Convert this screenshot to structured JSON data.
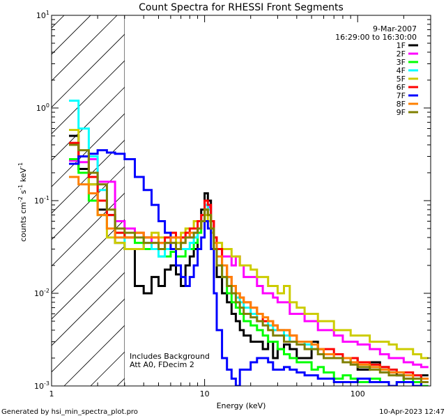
{
  "chart_data": {
    "type": "line",
    "title": "Count Spectra for RHESSI Front Segments",
    "xlabel": "Energy (keV)",
    "ylabel_main": "counts cm",
    "ylabel_exp1": "-2",
    "ylabel_mid": " s",
    "ylabel_exp2": "-1",
    "ylabel_end": " keV",
    "ylabel_exp3": "-1",
    "xscale": "log",
    "yscale": "log",
    "xlim": [
      1,
      300
    ],
    "ylim": [
      0.001,
      10
    ],
    "x_ticks": [
      {
        "value": 1,
        "label": "1"
      },
      {
        "value": 10,
        "label": "10"
      },
      {
        "value": 100,
        "label": "100"
      }
    ],
    "y_ticks": [
      {
        "value": 0.001,
        "base": "10",
        "exp": "-3"
      },
      {
        "value": 0.01,
        "base": "10",
        "exp": "-2"
      },
      {
        "value": 0.1,
        "base": "10",
        "exp": "-1"
      },
      {
        "value": 1,
        "base": "10",
        "exp": "0"
      },
      {
        "value": 10,
        "base": "10",
        "exp": "1"
      }
    ],
    "hatched_region": [
      1,
      3
    ],
    "date": "9-Mar-2007",
    "time_range": "16:29:00 to 16:30:00",
    "annotations": [
      "Includes Background",
      "Att A0, FDecim 2"
    ],
    "footer_left": "Generated by hsi_min_spectra_plot.pro",
    "footer_right": "10-Apr-2023 12:47",
    "energy_bins": [
      1.3,
      1.5,
      1.75,
      2.0,
      2.3,
      2.6,
      3.0,
      3.5,
      4.0,
      4.5,
      5.0,
      5.5,
      6.0,
      6.5,
      7.0,
      7.5,
      8.0,
      8.5,
      9.0,
      9.5,
      10.0,
      10.5,
      11.0,
      11.5,
      12.0,
      13.0,
      14.0,
      15.0,
      16.0,
      17.0,
      18.0,
      20.0,
      22.0,
      24.0,
      26.0,
      28.0,
      30.0,
      33.0,
      36.0,
      40.0,
      45.0,
      50.0,
      55.0,
      60.0,
      70.0,
      80.0,
      90.0,
      100.0,
      120.0,
      140.0,
      160.0,
      180.0,
      200.0,
      230.0,
      260.0,
      290.0
    ],
    "series": [
      {
        "name": "1F",
        "color": "#000000",
        "values": [
          0.5,
          0.22,
          0.15,
          0.08,
          0.07,
          0.035,
          0.03,
          0.012,
          0.01,
          0.015,
          0.012,
          0.018,
          0.02,
          0.016,
          0.012,
          0.02,
          0.025,
          0.03,
          0.05,
          0.08,
          0.12,
          0.1,
          0.05,
          0.03,
          0.015,
          0.01,
          0.008,
          0.006,
          0.005,
          0.004,
          0.0035,
          0.003,
          0.003,
          0.0025,
          0.003,
          0.002,
          0.0025,
          0.0028,
          0.0025,
          0.002,
          0.002,
          0.003,
          0.0025,
          0.002,
          0.002,
          0.0018,
          0.002,
          0.0015,
          0.0018,
          0.0016,
          0.0014,
          0.0013,
          0.0012,
          0.0012,
          0.0013,
          0.0012
        ]
      },
      {
        "name": "2F",
        "color": "#ff00ff",
        "values": [
          0.27,
          0.26,
          0.28,
          0.16,
          0.16,
          0.06,
          0.05,
          0.045,
          0.04,
          0.035,
          0.035,
          0.03,
          0.04,
          0.035,
          0.04,
          0.045,
          0.04,
          0.04,
          0.05,
          0.07,
          0.09,
          0.085,
          0.06,
          0.04,
          0.03,
          0.025,
          0.025,
          0.02,
          0.025,
          0.02,
          0.015,
          0.015,
          0.012,
          0.01,
          0.01,
          0.009,
          0.008,
          0.008,
          0.006,
          0.006,
          0.005,
          0.005,
          0.004,
          0.004,
          0.0035,
          0.003,
          0.003,
          0.0028,
          0.0025,
          0.0022,
          0.002,
          0.002,
          0.0018,
          0.0017,
          0.0016,
          0.0015
        ]
      },
      {
        "name": "3F",
        "color": "#00ff00",
        "values": [
          0.28,
          0.2,
          0.1,
          0.07,
          0.05,
          0.045,
          0.04,
          0.035,
          0.03,
          0.03,
          0.025,
          0.025,
          0.028,
          0.025,
          0.025,
          0.03,
          0.03,
          0.035,
          0.045,
          0.06,
          0.08,
          0.07,
          0.045,
          0.03,
          0.02,
          0.015,
          0.01,
          0.008,
          0.007,
          0.006,
          0.005,
          0.0045,
          0.004,
          0.0035,
          0.003,
          0.003,
          0.0025,
          0.0022,
          0.002,
          0.0018,
          0.0018,
          0.0015,
          0.0016,
          0.0014,
          0.0012,
          0.0013,
          0.0012,
          0.0011,
          0.0012,
          0.0011,
          0.001,
          0.0011,
          0.0012,
          0.0011,
          0.001,
          0.0011
        ]
      },
      {
        "name": "4F",
        "color": "#00ffff",
        "values": [
          1.2,
          0.6,
          0.3,
          0.13,
          0.07,
          0.04,
          0.03,
          0.03,
          0.035,
          0.03,
          0.025,
          0.03,
          0.03,
          0.03,
          0.03,
          0.03,
          0.035,
          0.04,
          0.05,
          0.07,
          0.09,
          0.08,
          0.05,
          0.03,
          0.02,
          0.015,
          0.012,
          0.01,
          0.009,
          0.008,
          0.007,
          0.006,
          0.005,
          0.005,
          0.0045,
          0.004,
          0.004,
          0.0035,
          0.003,
          0.003,
          0.0028,
          0.0025,
          0.0025,
          0.0022,
          0.002,
          0.002,
          0.0018,
          0.0018,
          0.0016,
          0.0015,
          0.0015,
          0.0014,
          0.0013,
          0.0013,
          0.0012,
          0.0012
        ]
      },
      {
        "name": "5F",
        "color": "#cccc00",
        "values": [
          0.58,
          0.3,
          0.15,
          0.07,
          0.04,
          0.035,
          0.03,
          0.03,
          0.04,
          0.045,
          0.04,
          0.04,
          0.045,
          0.035,
          0.045,
          0.05,
          0.05,
          0.06,
          0.06,
          0.06,
          0.07,
          0.06,
          0.045,
          0.04,
          0.035,
          0.03,
          0.03,
          0.025,
          0.025,
          0.02,
          0.02,
          0.018,
          0.015,
          0.015,
          0.012,
          0.012,
          0.01,
          0.012,
          0.008,
          0.007,
          0.006,
          0.006,
          0.005,
          0.005,
          0.004,
          0.004,
          0.0035,
          0.0035,
          0.003,
          0.003,
          0.0028,
          0.0025,
          0.0025,
          0.0022,
          0.002,
          0.002
        ]
      },
      {
        "name": "6F",
        "color": "#ff0000",
        "values": [
          0.42,
          0.3,
          0.18,
          0.1,
          0.07,
          0.045,
          0.04,
          0.045,
          0.04,
          0.04,
          0.035,
          0.04,
          0.045,
          0.04,
          0.04,
          0.045,
          0.05,
          0.05,
          0.06,
          0.07,
          0.1,
          0.09,
          0.06,
          0.04,
          0.03,
          0.02,
          0.015,
          0.012,
          0.01,
          0.009,
          0.008,
          0.007,
          0.006,
          0.005,
          0.005,
          0.0045,
          0.004,
          0.004,
          0.0035,
          0.003,
          0.003,
          0.0028,
          0.0025,
          0.0025,
          0.0022,
          0.002,
          0.002,
          0.0018,
          0.0017,
          0.0016,
          0.0015,
          0.0014,
          0.0014,
          0.0013,
          0.0012,
          0.0012
        ]
      },
      {
        "name": "7F",
        "color": "#0000ff",
        "values": [
          0.25,
          0.3,
          0.32,
          0.35,
          0.33,
          0.32,
          0.28,
          0.18,
          0.13,
          0.09,
          0.06,
          0.045,
          0.03,
          0.02,
          0.015,
          0.012,
          0.015,
          0.02,
          0.03,
          0.04,
          0.06,
          0.05,
          0.03,
          0.01,
          0.004,
          0.002,
          0.0015,
          0.0012,
          0.001,
          0.0015,
          0.0015,
          0.0018,
          0.002,
          0.002,
          0.0018,
          0.0015,
          0.0015,
          0.0016,
          0.0015,
          0.0014,
          0.0013,
          0.0013,
          0.0012,
          0.0012,
          0.0011,
          0.0011,
          0.0011,
          0.0012,
          0.0011,
          0.0011,
          0.001,
          0.0011,
          0.0011,
          0.001,
          0.0011,
          0.001
        ]
      },
      {
        "name": "8F",
        "color": "#ff8000",
        "values": [
          0.18,
          0.15,
          0.12,
          0.07,
          0.05,
          0.04,
          0.04,
          0.045,
          0.04,
          0.04,
          0.035,
          0.035,
          0.04,
          0.04,
          0.035,
          0.04,
          0.045,
          0.045,
          0.05,
          0.06,
          0.08,
          0.07,
          0.05,
          0.035,
          0.025,
          0.02,
          0.015,
          0.012,
          0.01,
          0.009,
          0.008,
          0.007,
          0.006,
          0.0055,
          0.005,
          0.0045,
          0.004,
          0.004,
          0.0035,
          0.003,
          0.003,
          0.0028,
          0.0025,
          0.0022,
          0.002,
          0.002,
          0.0018,
          0.0017,
          0.0016,
          0.0015,
          0.0014,
          0.0014,
          0.0013,
          0.0012,
          0.0012,
          0.0011
        ]
      },
      {
        "name": "9F",
        "color": "#808000",
        "values": [
          0.4,
          0.35,
          0.2,
          0.15,
          0.08,
          0.05,
          0.045,
          0.04,
          0.035,
          0.035,
          0.03,
          0.035,
          0.035,
          0.03,
          0.035,
          0.04,
          0.04,
          0.045,
          0.05,
          0.06,
          0.08,
          0.07,
          0.05,
          0.03,
          0.02,
          0.015,
          0.012,
          0.01,
          0.008,
          0.007,
          0.006,
          0.0055,
          0.005,
          0.0045,
          0.004,
          0.0035,
          0.0035,
          0.003,
          0.003,
          0.0028,
          0.0025,
          0.0025,
          0.0022,
          0.002,
          0.002,
          0.0018,
          0.0017,
          0.0016,
          0.0015,
          0.0014,
          0.0013,
          0.0013,
          0.0012,
          0.0012,
          0.0011,
          0.0011
        ]
      }
    ]
  }
}
